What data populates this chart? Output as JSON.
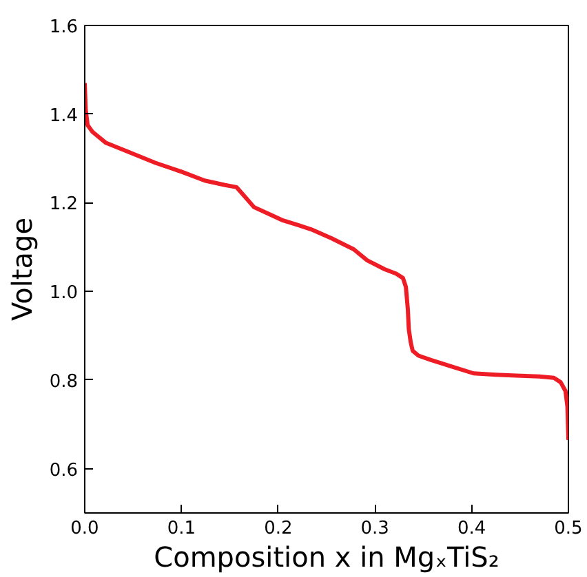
{
  "chart_data": {
    "type": "line",
    "xlabel": "Composition x in MgₓTiS₂",
    "ylabel": "Voltage",
    "x": [
      0.0,
      0.001,
      0.003,
      0.008,
      0.022,
      0.045,
      0.073,
      0.1,
      0.124,
      0.145,
      0.157,
      0.165,
      0.175,
      0.19,
      0.205,
      0.22,
      0.234,
      0.255,
      0.278,
      0.292,
      0.31,
      0.322,
      0.329,
      0.332,
      0.334,
      0.335,
      0.337,
      0.339,
      0.345,
      0.358,
      0.38,
      0.402,
      0.425,
      0.446,
      0.47,
      0.485,
      0.492,
      0.497,
      0.499,
      0.5
    ],
    "series": [
      {
        "color": "#ee1c25",
        "values": [
          1.47,
          1.41,
          1.375,
          1.36,
          1.335,
          1.315,
          1.29,
          1.27,
          1.25,
          1.24,
          1.235,
          1.215,
          1.19,
          1.175,
          1.16,
          1.15,
          1.14,
          1.12,
          1.095,
          1.07,
          1.05,
          1.04,
          1.03,
          1.01,
          0.96,
          0.915,
          0.885,
          0.866,
          0.855,
          0.845,
          0.83,
          0.815,
          0.812,
          0.81,
          0.808,
          0.805,
          0.795,
          0.775,
          0.74,
          0.665
        ]
      }
    ],
    "xlim": [
      0.0,
      0.5
    ],
    "ylim": [
      0.5,
      1.6
    ],
    "xticks": [
      {
        "value": 0.0,
        "label": "0.0"
      },
      {
        "value": 0.1,
        "label": "0.1"
      },
      {
        "value": 0.2,
        "label": "0.2"
      },
      {
        "value": 0.3,
        "label": "0.3"
      },
      {
        "value": 0.4,
        "label": "0.4"
      },
      {
        "value": 0.5,
        "label": "0.5"
      }
    ],
    "yticks": [
      {
        "value": 0.6,
        "label": "0.6"
      },
      {
        "value": 0.8,
        "label": "0.8"
      },
      {
        "value": 1.0,
        "label": "1.0"
      },
      {
        "value": 1.2,
        "label": "1.2"
      },
      {
        "value": 1.4,
        "label": "1.4"
      },
      {
        "value": 1.6,
        "label": "1.6"
      }
    ],
    "grid": false,
    "marker": "none",
    "line_style": "solid"
  }
}
